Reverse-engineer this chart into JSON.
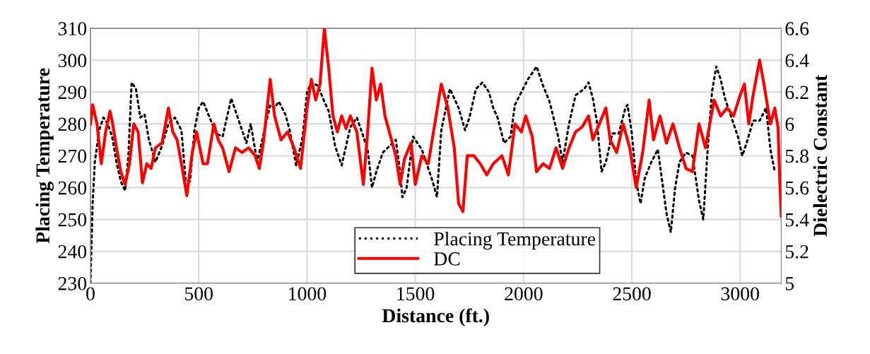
{
  "chart_data": {
    "type": "line",
    "xlabel": "Distance (ft.)",
    "ylabel": "Placing Temperature",
    "y2label": "Dielectric Constant",
    "xlim": [
      0,
      3190
    ],
    "xticks": [
      0,
      500,
      1000,
      1500,
      2000,
      2500,
      3000
    ],
    "ylim": [
      230,
      310
    ],
    "yticks": [
      230,
      240,
      250,
      260,
      270,
      280,
      290,
      300,
      310
    ],
    "y2lim": [
      5,
      6.6
    ],
    "y2ticks": [
      {
        "value": 5,
        "label": "5"
      },
      {
        "value": 5.2,
        "label": "5.2"
      },
      {
        "value": 5.4,
        "label": "5.4"
      },
      {
        "value": 5.6,
        "label": "5.6"
      },
      {
        "value": 5.8,
        "label": "5.8"
      },
      {
        "value": 6,
        "label": "6"
      },
      {
        "value": 6.2,
        "label": "6.2"
      },
      {
        "value": 6.4,
        "label": "6.4"
      },
      {
        "value": 6.6,
        "label": "6.6"
      }
    ],
    "grid": true,
    "legend": "bottom",
    "marker": "none",
    "series": [
      {
        "name": "Placing Temperature",
        "color": "#000000",
        "line_style": "dotted",
        "x": [
          0,
          10,
          20,
          40,
          60,
          80,
          100,
          120,
          140,
          160,
          175,
          190,
          210,
          230,
          250,
          270,
          300,
          330,
          360,
          390,
          420,
          440,
          460,
          480,
          500,
          520,
          550,
          580,
          610,
          650,
          680,
          700,
          720,
          740,
          770,
          800,
          830,
          850,
          870,
          900,
          920,
          950,
          980,
          1000,
          1020,
          1050,
          1080,
          1100,
          1130,
          1160,
          1200,
          1230,
          1250,
          1280,
          1300,
          1320,
          1350,
          1380,
          1410,
          1430,
          1440,
          1460,
          1490,
          1530,
          1560,
          1580,
          1600,
          1620,
          1660,
          1700,
          1730,
          1750,
          1780,
          1810,
          1840,
          1860,
          1880,
          1910,
          1940,
          1960,
          1990,
          2020,
          2060,
          2090,
          2120,
          2160,
          2180,
          2210,
          2240,
          2280,
          2300,
          2320,
          2340,
          2360,
          2380,
          2410,
          2440,
          2470,
          2480,
          2500,
          2520,
          2540,
          2560,
          2590,
          2620,
          2660,
          2680,
          2700,
          2720,
          2750,
          2780,
          2810,
          2830,
          2850,
          2870,
          2890,
          2910,
          2930,
          2960,
          2990,
          3010,
          3030,
          3060,
          3090,
          3120,
          3140,
          3160
        ],
        "values": [
          230,
          255,
          268,
          278,
          282,
          280,
          276,
          268,
          262,
          259,
          270,
          293,
          291,
          282,
          283,
          275,
          268,
          273,
          280,
          282,
          278,
          262,
          262,
          278,
          285,
          287,
          282,
          277,
          276,
          288,
          282,
          278,
          274,
          280,
          268,
          277,
          286,
          285,
          287,
          283,
          278,
          267,
          276,
          290,
          293,
          292,
          287,
          284,
          273,
          267,
          279,
          282,
          278,
          272,
          260,
          265,
          271,
          273,
          275,
          265,
          257,
          260,
          276,
          272,
          266,
          262,
          257,
          278,
          291,
          285,
          278,
          282,
          291,
          293,
          290,
          285,
          282,
          274,
          276,
          286,
          290,
          294,
          298,
          292,
          287,
          276,
          268,
          280,
          289,
          291,
          293,
          288,
          280,
          265,
          268,
          277,
          277,
          285,
          286,
          277,
          262,
          255,
          263,
          268,
          272,
          252,
          246,
          260,
          268,
          271,
          270,
          256,
          250,
          272,
          290,
          298,
          294,
          288,
          282,
          276,
          270,
          274,
          281,
          281,
          285,
          272,
          265
        ]
      },
      {
        "name": "DC",
        "color": "#ff0000",
        "line_style": "solid",
        "axis": "y2",
        "x": [
          0,
          10,
          30,
          50,
          70,
          90,
          100,
          120,
          140,
          160,
          180,
          200,
          220,
          240,
          260,
          280,
          300,
          330,
          360,
          380,
          400,
          420,
          445,
          470,
          490,
          520,
          540,
          570,
          590,
          610,
          640,
          670,
          700,
          730,
          760,
          780,
          800,
          830,
          850,
          880,
          910,
          940,
          970,
          1000,
          1020,
          1040,
          1060,
          1080,
          1100,
          1120,
          1140,
          1160,
          1180,
          1200,
          1230,
          1260,
          1280,
          1300,
          1320,
          1340,
          1360,
          1380,
          1410,
          1430,
          1450,
          1480,
          1500,
          1530,
          1560,
          1590,
          1620,
          1650,
          1680,
          1700,
          1720,
          1740,
          1770,
          1800,
          1830,
          1860,
          1900,
          1930,
          1960,
          1990,
          2010,
          2040,
          2060,
          2090,
          2120,
          2150,
          2180,
          2210,
          2240,
          2270,
          2300,
          2320,
          2350,
          2380,
          2400,
          2430,
          2460,
          2490,
          2520,
          2550,
          2580,
          2600,
          2630,
          2660,
          2690,
          2720,
          2750,
          2780,
          2810,
          2840,
          2860,
          2880,
          2910,
          2940,
          2970,
          3000,
          3020,
          3040,
          3060,
          3090,
          3110,
          3140,
          3160,
          3175,
          3183,
          3190
        ],
        "values": [
          6.0,
          6.12,
          6.0,
          5.75,
          5.95,
          6.08,
          6.02,
          5.85,
          5.7,
          5.62,
          5.75,
          6.0,
          5.95,
          5.63,
          5.75,
          5.72,
          5.85,
          5.88,
          6.1,
          5.95,
          5.9,
          5.75,
          5.55,
          5.82,
          5.95,
          5.75,
          5.75,
          6.0,
          5.9,
          5.85,
          5.7,
          5.85,
          5.82,
          5.85,
          5.8,
          5.72,
          5.9,
          6.28,
          6.05,
          5.9,
          5.95,
          5.85,
          5.72,
          6.1,
          6.28,
          6.15,
          6.25,
          6.6,
          6.35,
          6.05,
          5.95,
          6.05,
          5.97,
          6.05,
          5.95,
          5.62,
          5.95,
          6.35,
          6.15,
          6.25,
          6.05,
          5.95,
          5.8,
          5.62,
          5.78,
          5.88,
          5.62,
          5.8,
          5.75,
          6.0,
          6.25,
          6.1,
          5.85,
          5.5,
          5.45,
          5.8,
          5.8,
          5.75,
          5.68,
          5.75,
          5.8,
          5.68,
          6.0,
          5.95,
          6.05,
          5.92,
          5.7,
          5.75,
          5.72,
          5.85,
          5.72,
          5.85,
          5.95,
          5.98,
          6.05,
          5.9,
          6.0,
          6.1,
          5.9,
          5.82,
          6.0,
          5.85,
          5.6,
          5.82,
          6.15,
          5.9,
          6.05,
          5.88,
          6.0,
          5.85,
          5.72,
          5.7,
          6.0,
          5.85,
          6.0,
          6.15,
          6.05,
          6.1,
          6.05,
          6.18,
          6.25,
          6.0,
          6.18,
          6.4,
          6.25,
          6.0,
          6.1,
          5.98,
          5.65,
          5.42
        ]
      }
    ]
  }
}
